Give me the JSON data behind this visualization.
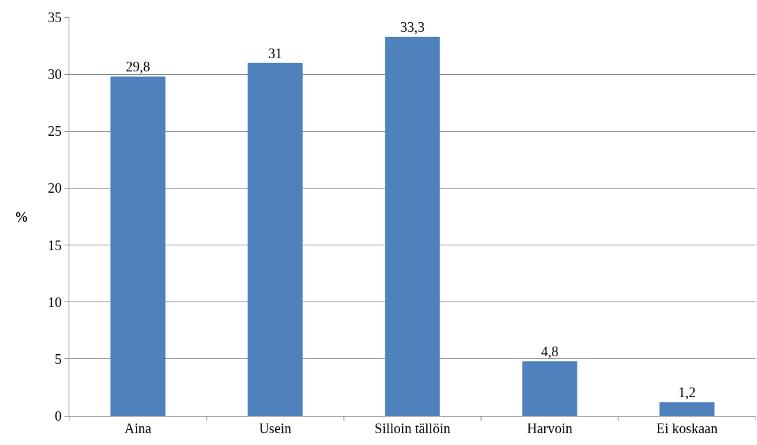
{
  "chart_data": {
    "type": "bar",
    "ylabel": "%",
    "categories": [
      "Aina",
      "Usein",
      "Silloin tällöin",
      "Harvoin",
      "Ei koskaan"
    ],
    "values": [
      29.8,
      31,
      33.3,
      4.8,
      1.2
    ],
    "value_labels": [
      "29,8",
      "31",
      "33,3",
      "4,8",
      "1,2"
    ],
    "color": "#4f81bd",
    "ylim": [
      0,
      35
    ],
    "yticks": [
      0,
      5,
      10,
      15,
      20,
      25,
      30,
      35
    ],
    "grid": "y",
    "legend": false
  }
}
